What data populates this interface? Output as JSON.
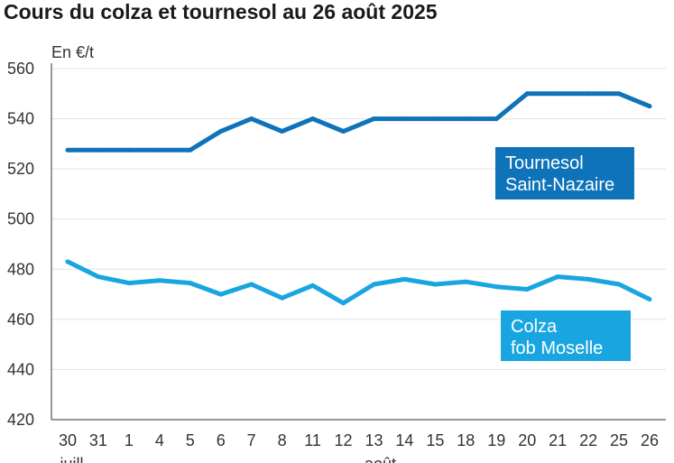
{
  "chart_data": {
    "type": "line",
    "title": "Cours du colza et tournesol au 26 août 2025",
    "unit_label": "En €/t",
    "ylim": [
      420,
      560
    ],
    "yticks": [
      420,
      440,
      460,
      480,
      500,
      520,
      540,
      560
    ],
    "categories": [
      "30",
      "31",
      "1",
      "4",
      "5",
      "6",
      "7",
      "8",
      "11",
      "12",
      "13",
      "14",
      "15",
      "18",
      "19",
      "20",
      "21",
      "22",
      "25",
      "26"
    ],
    "month_labels": [
      {
        "text": "juill.",
        "at_index": 0
      },
      {
        "text": "août",
        "at_index": 10
      }
    ],
    "grid": "horizontal",
    "series": [
      {
        "name": "Tournesol Saint-Nazaire",
        "label_lines": [
          "Tournesol",
          "Saint-Nazaire"
        ],
        "color": "#0e73b9",
        "values": [
          527.5,
          527.5,
          527.5,
          527.5,
          527.5,
          535,
          540,
          535,
          540,
          535,
          540,
          540,
          540,
          540,
          540,
          550,
          550,
          550,
          550,
          545
        ]
      },
      {
        "name": "Colza fob Moselle",
        "label_lines": [
          "Colza",
          "fob Moselle"
        ],
        "color": "#19a6e0",
        "values": [
          483,
          477,
          474.5,
          475.5,
          474.5,
          470,
          474,
          468.5,
          473.5,
          466.5,
          474,
          476,
          474,
          475,
          473,
          472,
          477,
          476,
          474,
          468
        ]
      }
    ]
  }
}
